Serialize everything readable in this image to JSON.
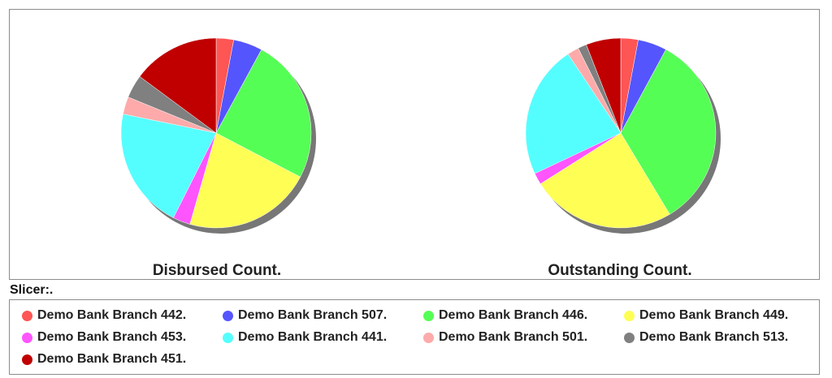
{
  "chart_data": [
    {
      "type": "pie",
      "title": "Disbursed Count.",
      "categories": [
        "Demo Bank Branch 442.",
        "Demo Bank Branch 507.",
        "Demo Bank Branch 446.",
        "Demo Bank Branch 449.",
        "Demo Bank Branch 453.",
        "Demo Bank Branch 441.",
        "Demo Bank Branch 501.",
        "Demo Bank Branch 513.",
        "Demo Bank Branch 451."
      ],
      "values": [
        3,
        5,
        25,
        22,
        3,
        21,
        3,
        4,
        15
      ]
    },
    {
      "type": "pie",
      "title": "Outstanding Count.",
      "categories": [
        "Demo Bank Branch 442.",
        "Demo Bank Branch 507.",
        "Demo Bank Branch 446.",
        "Demo Bank Branch 449.",
        "Demo Bank Branch 453.",
        "Demo Bank Branch 441.",
        "Demo Bank Branch 501.",
        "Demo Bank Branch 513.",
        "Demo Bank Branch 451."
      ],
      "values": [
        3,
        5,
        34,
        25,
        2,
        23,
        2,
        1.5,
        6
      ]
    }
  ],
  "slicer_label": "Slicer:.",
  "legend": [
    {
      "label": "Demo Bank Branch 442.",
      "color": "#fe5555"
    },
    {
      "label": "Demo Bank Branch 507.",
      "color": "#5555fe"
    },
    {
      "label": "Demo Bank Branch 446.",
      "color": "#55fe55"
    },
    {
      "label": "Demo Bank Branch 449.",
      "color": "#fefe55"
    },
    {
      "label": "Demo Bank Branch 453.",
      "color": "#fe55fe"
    },
    {
      "label": "Demo Bank Branch 441.",
      "color": "#55fefe"
    },
    {
      "label": "Demo Bank Branch 501.",
      "color": "#feaaaa"
    },
    {
      "label": "Demo Bank Branch 513.",
      "color": "#808080"
    },
    {
      "label": "Demo Bank Branch 451.",
      "color": "#c00000"
    }
  ]
}
